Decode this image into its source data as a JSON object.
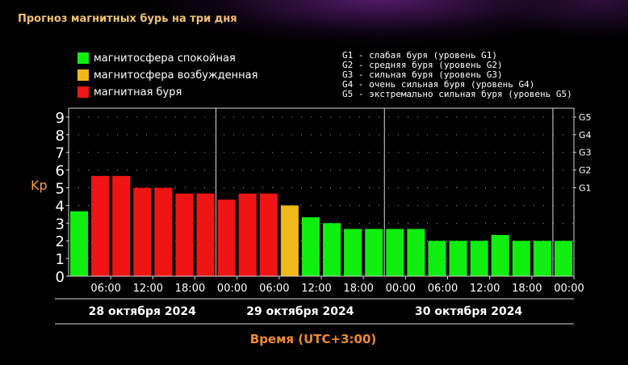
{
  "title": "Прогноз магнитных бурь на три дня",
  "legend": {
    "items": [
      {
        "label": "магнитосфера спокойная",
        "color": "#10ee10"
      },
      {
        "label": "магнитосфера возбужденная",
        "color": "#f0b818"
      },
      {
        "label": "магнитная буря",
        "color": "#f01414"
      }
    ]
  },
  "storm_scale": [
    "G1 - слабая буря (уровень G1)",
    "G2 - средняя буря (уровень G2)",
    "G3 - сильная буря (уровень G3)",
    "G4 - очень сильная буря (уровень G4)",
    "G5 - экстремально сильная буря (уровень G5)"
  ],
  "chart_data": {
    "type": "bar",
    "title": "",
    "ylabel": "Kp",
    "xlabel": "Время (UTC+3:00)",
    "ylim": [
      0,
      9.5
    ],
    "y_ticks": [
      "0",
      "1",
      "2",
      "3",
      "4",
      "5",
      "6",
      "7",
      "8",
      "9"
    ],
    "right_ticks": [
      {
        "label": "G1",
        "value": 5
      },
      {
        "label": "G2",
        "value": 6
      },
      {
        "label": "G3",
        "value": 7
      },
      {
        "label": "G4",
        "value": 8
      },
      {
        "label": "G5",
        "value": 9
      }
    ],
    "x_tick_labels": [
      "06:00",
      "12:00",
      "18:00",
      "00:00",
      "06:00",
      "12:00",
      "18:00",
      "00:00",
      "06:00",
      "12:00",
      "18:00",
      "00:00"
    ],
    "days": [
      "28 октября 2024",
      "29 октября 2024",
      "30 октября 2024"
    ],
    "grid": true,
    "values": [
      3.67,
      5.67,
      5.67,
      5.0,
      5.0,
      4.67,
      4.67,
      4.33,
      4.67,
      4.67,
      4.0,
      3.33,
      3.0,
      2.67,
      2.67,
      2.67,
      2.67,
      2.0,
      2.0,
      2.0,
      2.33,
      2.0,
      2.0,
      2.0
    ],
    "colors": [
      "#10ee10",
      "#f01414",
      "#f01414",
      "#f01414",
      "#f01414",
      "#f01414",
      "#f01414",
      "#f01414",
      "#f01414",
      "#f01414",
      "#f0b818",
      "#10ee10",
      "#10ee10",
      "#10ee10",
      "#10ee10",
      "#10ee10",
      "#10ee10",
      "#10ee10",
      "#10ee10",
      "#10ee10",
      "#10ee10",
      "#10ee10",
      "#10ee10",
      "#10ee10"
    ]
  }
}
